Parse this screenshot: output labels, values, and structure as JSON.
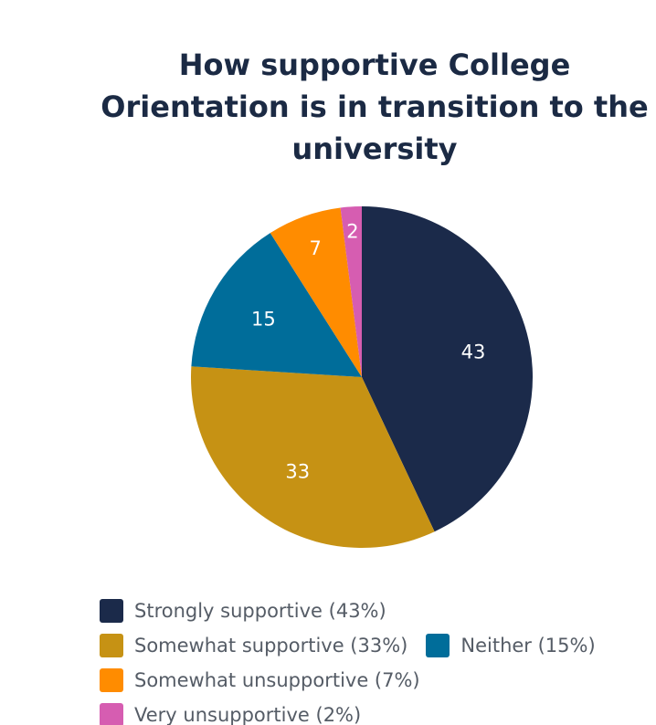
{
  "title": {
    "lines": [
      "How supportive College",
      "Orientation is in transition to the",
      "university"
    ]
  },
  "chart_data": {
    "type": "pie",
    "title": "How supportive College Orientation is in transition to the university",
    "categories": [
      "Strongly supportive",
      "Somewhat supportive",
      "Neither",
      "Somewhat unsupportive",
      "Very unsupportive"
    ],
    "values": [
      43,
      33,
      15,
      7,
      2
    ],
    "value_labels": [
      "43",
      "33",
      "15",
      "7",
      "2"
    ],
    "colors": [
      "#1b2a4a",
      "#c69214",
      "#006d9a",
      "#ff8c00",
      "#d65db1"
    ],
    "legend": {
      "placement": "bottom",
      "entries": [
        "Strongly supportive (43%)",
        "Somewhat supportive (33%)",
        "Neither (15%)",
        "Somewhat unsupportive (7%)",
        "Very unsupportive (2%)"
      ]
    }
  }
}
